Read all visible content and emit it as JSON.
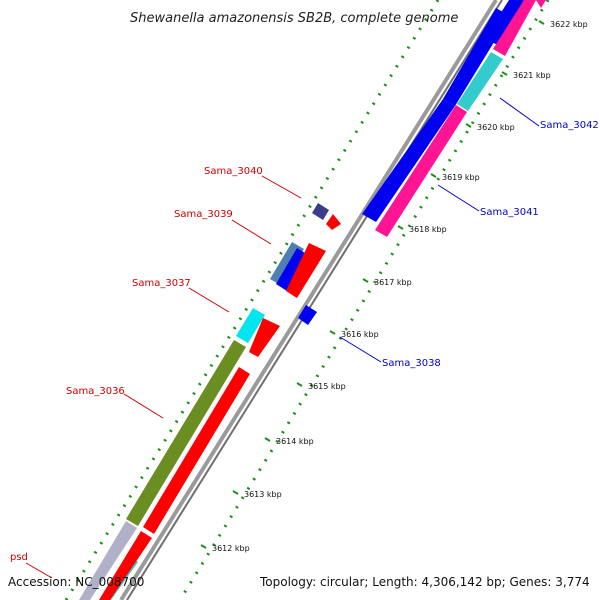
{
  "title": "Shewanella amazonensis SB2B, complete genome",
  "accession": "Accession: NC_008700",
  "summary": "Topology: circular; Length: 4,306,142 bp; Genes: 3,774",
  "colors": {
    "backbone": "#9a9a9a",
    "forward_label": "#cc0000",
    "reverse_label": "#0000cc",
    "gc_skew": "#1a8f1a",
    "blue_cds": "#0000f0",
    "red_cds": "#ff0000",
    "magenta_cds": "#ff1493",
    "cyan_cds": "#33cccc",
    "olive_cds": "#6b8e23",
    "steel_cds": "#4f7fb0",
    "navy_cds": "#3c3c8c"
  },
  "ticks": [
    {
      "label": "3612 kbp"
    },
    {
      "label": "3613 kbp"
    },
    {
      "label": "3614 kbp"
    },
    {
      "label": "3615 kbp"
    },
    {
      "label": "3616 kbp"
    },
    {
      "label": "3617 kbp"
    },
    {
      "label": "3618 kbp"
    },
    {
      "label": "3619 kbp"
    },
    {
      "label": "3620 kbp"
    },
    {
      "label": "3621 kbp"
    },
    {
      "label": "3622 kbp"
    }
  ],
  "gene_labels": [
    {
      "text": "Sama_3040",
      "strand": "forward"
    },
    {
      "text": "Sama_3039",
      "strand": "forward"
    },
    {
      "text": "Sama_3037",
      "strand": "forward"
    },
    {
      "text": "Sama_3036",
      "strand": "forward"
    },
    {
      "text": "psd",
      "strand": "forward"
    },
    {
      "text": "Sama_3042",
      "strand": "reverse"
    },
    {
      "text": "Sama_3041",
      "strand": "reverse"
    },
    {
      "text": "Sama_3038",
      "strand": "reverse"
    }
  ]
}
